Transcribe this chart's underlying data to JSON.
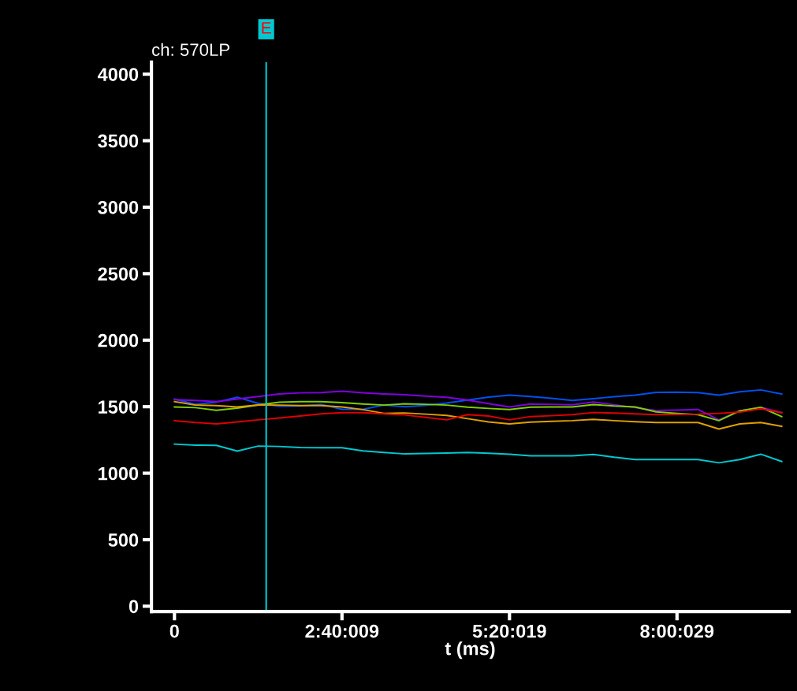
{
  "chart_data": {
    "type": "line",
    "title": "ch: 570LP",
    "xlabel": "t (ms)",
    "categories": [
      "0",
      null,
      null,
      null,
      null,
      null,
      null,
      null,
      "2:40:009",
      null,
      null,
      null,
      null,
      null,
      null,
      null,
      "5:20:019",
      null,
      null,
      null,
      null,
      null,
      null,
      null,
      "8:00:029",
      null,
      null,
      null,
      null,
      null
    ],
    "series": [
      {
        "color": "#0050f0",
        "values": [
          1557,
          1518,
          1534,
          1571,
          1525,
          1504,
          1505,
          1518,
          1480,
          1480,
          1512,
          1500,
          1510,
          1528,
          1550,
          1572,
          1587,
          1577,
          1563,
          1547,
          1560,
          1575,
          1587,
          1608,
          1609,
          1606,
          1587,
          1612,
          1626,
          1595
        ]
      },
      {
        "color": "#8000e0",
        "values": [
          1553,
          1547,
          1538,
          1557,
          1577,
          1596,
          1604,
          1606,
          1616,
          1605,
          1596,
          1590,
          1580,
          1571,
          1550,
          1523,
          1498,
          1520,
          1518,
          1514,
          1535,
          1515,
          1493,
          1472,
          1474,
          1479,
          1401,
          1469,
          1495,
          1455
        ]
      },
      {
        "color": "#80d000",
        "values": [
          1498,
          1493,
          1473,
          1489,
          1513,
          1534,
          1538,
          1538,
          1531,
          1520,
          1512,
          1522,
          1518,
          1512,
          1497,
          1487,
          1479,
          1497,
          1498,
          1498,
          1516,
          1505,
          1498,
          1461,
          1450,
          1440,
          1395,
          1469,
          1495,
          1425
        ]
      },
      {
        "color": "#e0a000",
        "values": [
          1538,
          1512,
          1508,
          1498,
          1513,
          1512,
          1508,
          1508,
          1498,
          1478,
          1450,
          1453,
          1444,
          1434,
          1410,
          1385,
          1371,
          1384,
          1390,
          1395,
          1405,
          1395,
          1387,
          1381,
          1381,
          1381,
          1332,
          1371,
          1381,
          1352
        ]
      },
      {
        "color": "#e00000",
        "values": [
          1395,
          1381,
          1371,
          1385,
          1401,
          1415,
          1430,
          1446,
          1455,
          1455,
          1446,
          1438,
          1420,
          1401,
          1440,
          1430,
          1401,
          1426,
          1432,
          1440,
          1456,
          1452,
          1446,
          1440,
          1442,
          1444,
          1450,
          1459,
          1485,
          1455
        ]
      },
      {
        "color": "#00c8d0",
        "values": [
          1219,
          1211,
          1209,
          1166,
          1204,
          1201,
          1193,
          1191,
          1191,
          1168,
          1156,
          1145,
          1148,
          1152,
          1156,
          1150,
          1143,
          1131,
          1131,
          1131,
          1141,
          1120,
          1103,
          1103,
          1103,
          1103,
          1078,
          1103,
          1143,
          1088
        ]
      }
    ],
    "ylim": [
      -40,
      4090
    ],
    "yticks": [
      0,
      500,
      1000,
      1500,
      2000,
      2500,
      3000,
      3500,
      4000
    ],
    "annotations": [
      "E"
    ],
    "grid": false,
    "legend": false,
    "marker": "none",
    "line_style": "solid"
  }
}
